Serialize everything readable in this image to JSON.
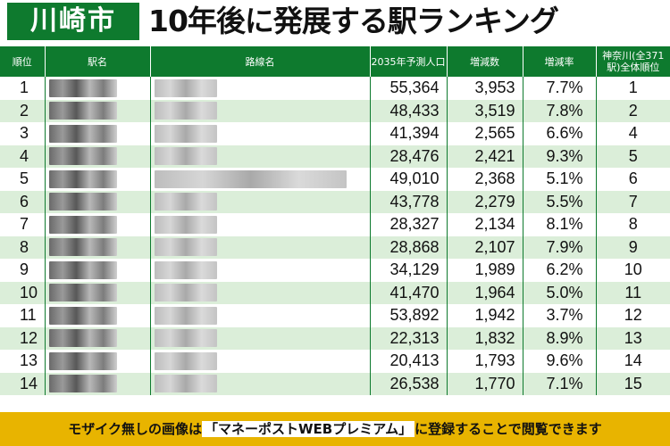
{
  "header": {
    "city": "川崎市",
    "title": "10年後に発展する駅ランキング"
  },
  "columns": {
    "rank": "順位",
    "station": "駅名",
    "line": "路線名",
    "population_2035": "2035年予測人口",
    "increase": "増減数",
    "rate": "増減率",
    "kanagawa_rank_1": "神奈川(全371",
    "kanagawa_rank_2": "駅)全体順位"
  },
  "rows": [
    {
      "rank": "1",
      "population": "55,364",
      "increase": "3,953",
      "rate": "7.7%",
      "kanagawa_rank": "1"
    },
    {
      "rank": "2",
      "population": "48,433",
      "increase": "3,519",
      "rate": "7.8%",
      "kanagawa_rank": "2"
    },
    {
      "rank": "3",
      "population": "41,394",
      "increase": "2,565",
      "rate": "6.6%",
      "kanagawa_rank": "4"
    },
    {
      "rank": "4",
      "population": "28,476",
      "increase": "2,421",
      "rate": "9.3%",
      "kanagawa_rank": "5"
    },
    {
      "rank": "5",
      "population": "49,010",
      "increase": "2,368",
      "rate": "5.1%",
      "kanagawa_rank": "6"
    },
    {
      "rank": "6",
      "population": "43,778",
      "increase": "2,279",
      "rate": "5.5%",
      "kanagawa_rank": "7"
    },
    {
      "rank": "7",
      "population": "28,327",
      "increase": "2,134",
      "rate": "8.1%",
      "kanagawa_rank": "8"
    },
    {
      "rank": "8",
      "population": "28,868",
      "increase": "2,107",
      "rate": "7.9%",
      "kanagawa_rank": "9"
    },
    {
      "rank": "9",
      "population": "34,129",
      "increase": "1,989",
      "rate": "6.2%",
      "kanagawa_rank": "10"
    },
    {
      "rank": "10",
      "population": "41,470",
      "increase": "1,964",
      "rate": "5.0%",
      "kanagawa_rank": "11"
    },
    {
      "rank": "11",
      "population": "53,892",
      "increase": "1,942",
      "rate": "3.7%",
      "kanagawa_rank": "12"
    },
    {
      "rank": "12",
      "population": "22,313",
      "increase": "1,832",
      "rate": "8.9%",
      "kanagawa_rank": "13"
    },
    {
      "rank": "13",
      "population": "20,413",
      "increase": "1,793",
      "rate": "9.6%",
      "kanagawa_rank": "14"
    },
    {
      "rank": "14",
      "population": "26,538",
      "increase": "1,770",
      "rate": "7.1%",
      "kanagawa_rank": "15"
    }
  ],
  "footer": {
    "before": "モザイク無しの画像は",
    "brand": "「マネーポストWEBプレミアム」",
    "after": "に登録することで閲覧できます"
  }
}
